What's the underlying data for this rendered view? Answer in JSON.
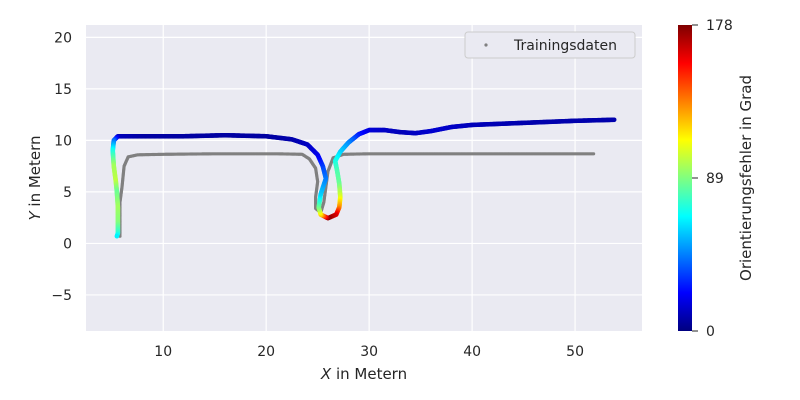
{
  "chart_data": {
    "type": "scatter",
    "title": "",
    "xlabel_var": "X",
    "xlabel_rest": " in Metern",
    "ylabel_var": "Y",
    "ylabel_rest": " in Metern",
    "xlim": [
      2.5,
      56.5
    ],
    "ylim": [
      -8.5,
      21.2
    ],
    "xticks": [
      10,
      20,
      30,
      40,
      50
    ],
    "xtick_labels": [
      "10",
      "20",
      "30",
      "40",
      "50"
    ],
    "yticks": [
      -5,
      0,
      5,
      10,
      15,
      20
    ],
    "ytick_labels": [
      "−5",
      "0",
      "5",
      "10",
      "15",
      "20"
    ],
    "grid": true,
    "background": "#eaeaf2",
    "legend": {
      "position": "top-right",
      "label": "Trainingsdaten"
    },
    "colorbar": {
      "label": "Orientierungsfehler in Grad",
      "range": [
        0,
        178
      ],
      "ticks": [
        0,
        89,
        178
      ],
      "tick_labels": [
        "0",
        "89",
        "178"
      ],
      "colormap": "jet"
    },
    "training_data": {
      "color": "#808080",
      "path": [
        [
          5.8,
          0.7
        ],
        [
          5.8,
          4.0
        ],
        [
          6.0,
          5.5
        ],
        [
          6.2,
          7.5
        ],
        [
          6.6,
          8.4
        ],
        [
          7.5,
          8.6
        ],
        [
          10.0,
          8.65
        ],
        [
          15.0,
          8.7
        ],
        [
          21.0,
          8.7
        ],
        [
          23.5,
          8.65
        ],
        [
          24.2,
          8.2
        ],
        [
          24.8,
          7.3
        ],
        [
          25.0,
          6.0
        ],
        [
          24.8,
          4.5
        ],
        [
          24.8,
          3.4
        ],
        [
          25.3,
          3.0
        ],
        [
          25.6,
          4.0
        ],
        [
          25.8,
          5.5
        ],
        [
          26.0,
          7.0
        ],
        [
          26.5,
          8.3
        ],
        [
          27.5,
          8.65
        ],
        [
          30.0,
          8.7
        ],
        [
          40.0,
          8.7
        ],
        [
          51.8,
          8.7
        ]
      ]
    },
    "error_series": {
      "path": [
        [
          53.8,
          12.0,
          8
        ],
        [
          50.0,
          11.9,
          8
        ],
        [
          45.0,
          11.7,
          8
        ],
        [
          40.0,
          11.5,
          10
        ],
        [
          38.0,
          11.3,
          12
        ],
        [
          36.0,
          10.9,
          14
        ],
        [
          34.5,
          10.7,
          12
        ],
        [
          33.0,
          10.8,
          10
        ],
        [
          31.5,
          11.0,
          12
        ],
        [
          30.0,
          11.0,
          15
        ],
        [
          29.0,
          10.6,
          25
        ],
        [
          28.0,
          9.8,
          45
        ],
        [
          27.2,
          8.9,
          58
        ],
        [
          26.7,
          8.0,
          70
        ],
        [
          26.9,
          7.0,
          80
        ],
        [
          27.1,
          5.8,
          85
        ],
        [
          27.2,
          4.5,
          105
        ],
        [
          27.1,
          3.5,
          130
        ],
        [
          26.8,
          2.8,
          160
        ],
        [
          26.0,
          2.45,
          175
        ],
        [
          25.3,
          2.8,
          120
        ],
        [
          25.1,
          3.5,
          90
        ],
        [
          25.3,
          4.8,
          60
        ],
        [
          25.8,
          6.3,
          45
        ],
        [
          25.5,
          7.5,
          35
        ],
        [
          25.0,
          8.6,
          20
        ],
        [
          24.0,
          9.6,
          12
        ],
        [
          22.5,
          10.1,
          8
        ],
        [
          20.0,
          10.4,
          6
        ],
        [
          16.0,
          10.5,
          6
        ],
        [
          12.0,
          10.4,
          6
        ],
        [
          8.0,
          10.4,
          6
        ],
        [
          5.6,
          10.4,
          10
        ],
        [
          5.2,
          10.0,
          40
        ],
        [
          5.1,
          9.0,
          70
        ],
        [
          5.2,
          7.5,
          95
        ],
        [
          5.4,
          6.0,
          100
        ],
        [
          5.5,
          5.0,
          85
        ],
        [
          5.6,
          3.5,
          95
        ],
        [
          5.6,
          2.0,
          90
        ],
        [
          5.6,
          1.0,
          75
        ],
        [
          5.5,
          0.7,
          65
        ]
      ]
    }
  }
}
